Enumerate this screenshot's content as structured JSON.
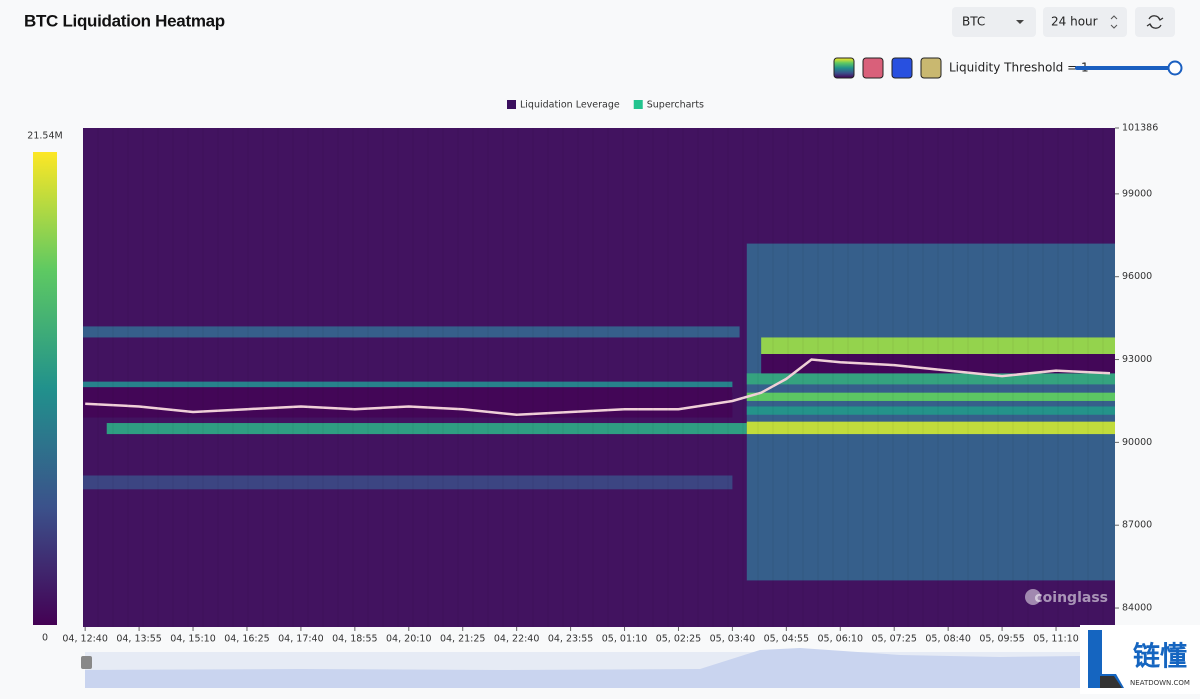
{
  "header": {
    "title": "BTC Liquidation Heatmap",
    "symbol": "BTC",
    "range": "24 hour",
    "threshold_label": "Liquidity Threshold = 1"
  },
  "watermark": "coinglass",
  "corner_logo": {
    "name": "链懂",
    "site": "NEATDOWN.COM"
  },
  "chart_data": {
    "type": "heatmap",
    "legend": [
      "Liquidation Leverage",
      "Supercharts"
    ],
    "legend_colors": [
      "#3b0f5e",
      "#22c38e"
    ],
    "xlim": [
      757,
      2192
    ],
    "xticks": [
      {
        "value": 760,
        "label": "04, 12:40"
      },
      {
        "value": 835,
        "label": "04, 13:55"
      },
      {
        "value": 910,
        "label": "04, 15:10"
      },
      {
        "value": 985,
        "label": "04, 16:25"
      },
      {
        "value": 1060,
        "label": "04, 17:40"
      },
      {
        "value": 1135,
        "label": "04, 18:55"
      },
      {
        "value": 1210,
        "label": "04, 20:10"
      },
      {
        "value": 1285,
        "label": "04, 21:25"
      },
      {
        "value": 1360,
        "label": "04, 22:40"
      },
      {
        "value": 1435,
        "label": "04, 23:55"
      },
      {
        "value": 1510,
        "label": "05, 01:10"
      },
      {
        "value": 1585,
        "label": "05, 02:25"
      },
      {
        "value": 1660,
        "label": "05, 03:40"
      },
      {
        "value": 1735,
        "label": "05, 04:55"
      },
      {
        "value": 1810,
        "label": "05, 06:10"
      },
      {
        "value": 1885,
        "label": "05, 07:25"
      },
      {
        "value": 1960,
        "label": "05, 08:40"
      },
      {
        "value": 2035,
        "label": "05, 09:55"
      },
      {
        "value": 2110,
        "label": "05, 11:10"
      }
    ],
    "ylim": [
      83313,
      101386
    ],
    "yticks": [
      101386,
      99000,
      96000,
      93000,
      90000,
      87000,
      84000
    ],
    "zlim": [
      0,
      21540000
    ],
    "zticks": [
      {
        "value": 21540000,
        "label": "21.54M"
      },
      0
    ],
    "bands": [
      {
        "y": [
          83313,
          101386
        ],
        "x": [
          757,
          2192
        ],
        "value": 1200000
      },
      {
        "y": [
          85000,
          97200
        ],
        "x": [
          1680,
          2192
        ],
        "value": 6500000
      },
      {
        "y": [
          88300,
          88800
        ],
        "x": [
          757,
          1660
        ],
        "value": 4500000
      },
      {
        "y": [
          93800,
          94200
        ],
        "x": [
          757,
          1670
        ],
        "value": 6500000
      },
      {
        "y": [
          91800,
          92200
        ],
        "x": [
          757,
          1660
        ],
        "value": 9500000
      },
      {
        "y": [
          90300,
          90700
        ],
        "x": [
          790,
          1680
        ],
        "value": 12000000
      },
      {
        "y": [
          90300,
          90750
        ],
        "x": [
          1680,
          2192
        ],
        "value": 19500000
      },
      {
        "y": [
          93200,
          93800
        ],
        "x": [
          1700,
          2192
        ],
        "value": 18000000
      },
      {
        "y": [
          91500,
          91800
        ],
        "x": [
          1680,
          2192
        ],
        "value": 16000000
      },
      {
        "y": [
          92100,
          92500
        ],
        "x": [
          1680,
          2192
        ],
        "value": 12500000
      },
      {
        "y": [
          91000,
          91300
        ],
        "x": [
          1680,
          2192
        ],
        "value": 11000000
      },
      {
        "y": [
          90900,
          92000
        ],
        "x": [
          757,
          1660
        ],
        "value": 300000
      },
      {
        "y": [
          92500,
          93200
        ],
        "x": [
          1700,
          2192
        ],
        "value": 400000
      }
    ],
    "series": [
      {
        "color": "#f0d0d8",
        "x": [
          760,
          835,
          910,
          985,
          1060,
          1135,
          1210,
          1285,
          1360,
          1435,
          1510,
          1585,
          1660,
          1700,
          1735,
          1770,
          1810,
          1885,
          1960,
          2035,
          2110,
          2185
        ],
        "values": [
          91400,
          91300,
          91100,
          91200,
          91300,
          91200,
          91300,
          91200,
          91000,
          91100,
          91200,
          91200,
          91500,
          91800,
          92300,
          93000,
          92900,
          92800,
          92600,
          92400,
          92600,
          92500
        ]
      }
    ]
  }
}
